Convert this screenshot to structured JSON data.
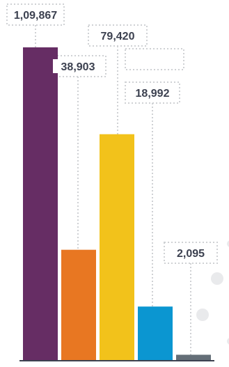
{
  "chart_data": {
    "type": "bar",
    "values": [
      109867,
      38903,
      79420,
      18992,
      2095
    ],
    "labels": [
      "1,09,867",
      "38,903",
      "79,420",
      "18,992",
      "2,095"
    ],
    "colors": [
      "#662d64",
      "#e87722",
      "#f2c21b",
      "#0b96d1",
      "#646e77"
    ],
    "ylim": [
      0,
      109867
    ],
    "xlabel": "",
    "ylabel": "",
    "grid": false,
    "legend": "none"
  }
}
